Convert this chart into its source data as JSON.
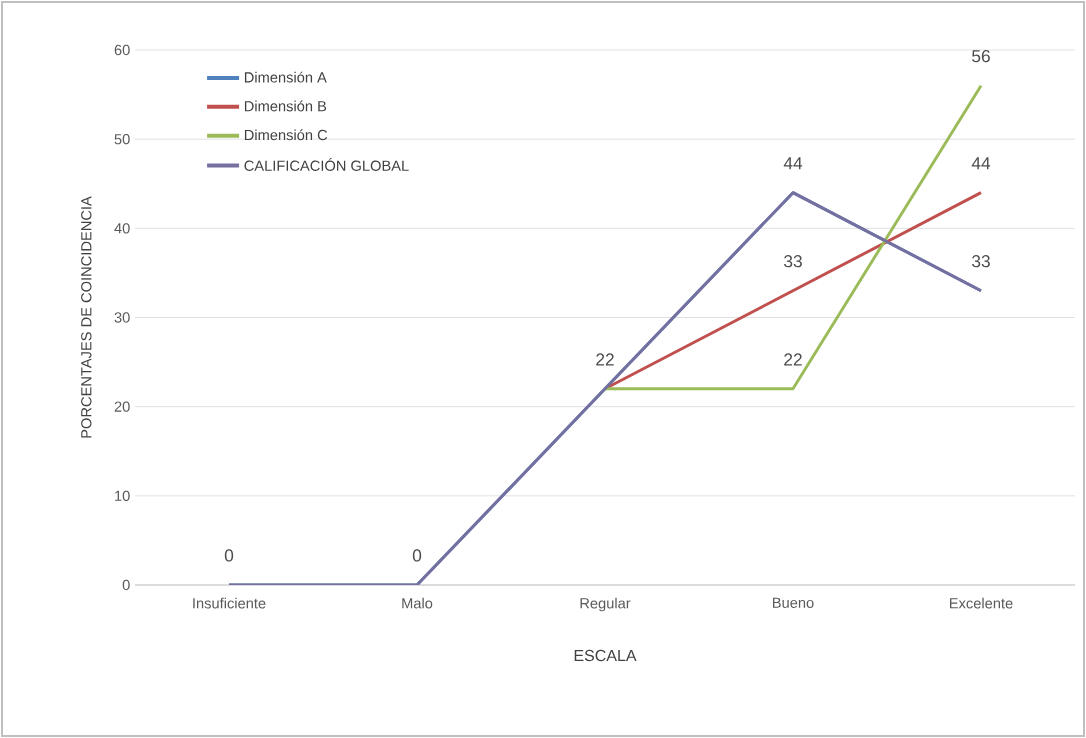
{
  "chart_data": {
    "type": "line",
    "xlabel": "ESCALA",
    "ylabel": "PORCENTAJES DE COINCIDENCIA",
    "categories": [
      "Insuficiente",
      "Malo",
      "Regular",
      "Bueno",
      "Excelente"
    ],
    "series": [
      {
        "name": "Dimensión A",
        "color": "#4f81bd",
        "values": [
          0,
          0,
          22,
          44,
          33
        ]
      },
      {
        "name": "Dimensión B",
        "color": "#c0504d",
        "values": [
          null,
          null,
          22,
          33,
          44
        ],
        "value_labels": [
          null,
          null,
          null,
          "33",
          "44"
        ]
      },
      {
        "name": "Dimensión C",
        "color": "#9bbb59",
        "values": [
          null,
          null,
          22,
          22,
          56
        ],
        "value_labels": [
          null,
          null,
          null,
          "22",
          "56"
        ]
      },
      {
        "name": "CALIFICACIÓN GLOBAL",
        "color": "#7570a0",
        "values": [
          0,
          0,
          22,
          44,
          33
        ],
        "value_labels": [
          "0",
          "0",
          "22",
          "44",
          "33"
        ]
      }
    ],
    "ylim": [
      0,
      60
    ],
    "yticks": [
      0,
      10,
      20,
      30,
      40,
      50,
      60
    ],
    "grid": "y",
    "legend": "top left",
    "marker": "none",
    "line_style": "solid"
  }
}
